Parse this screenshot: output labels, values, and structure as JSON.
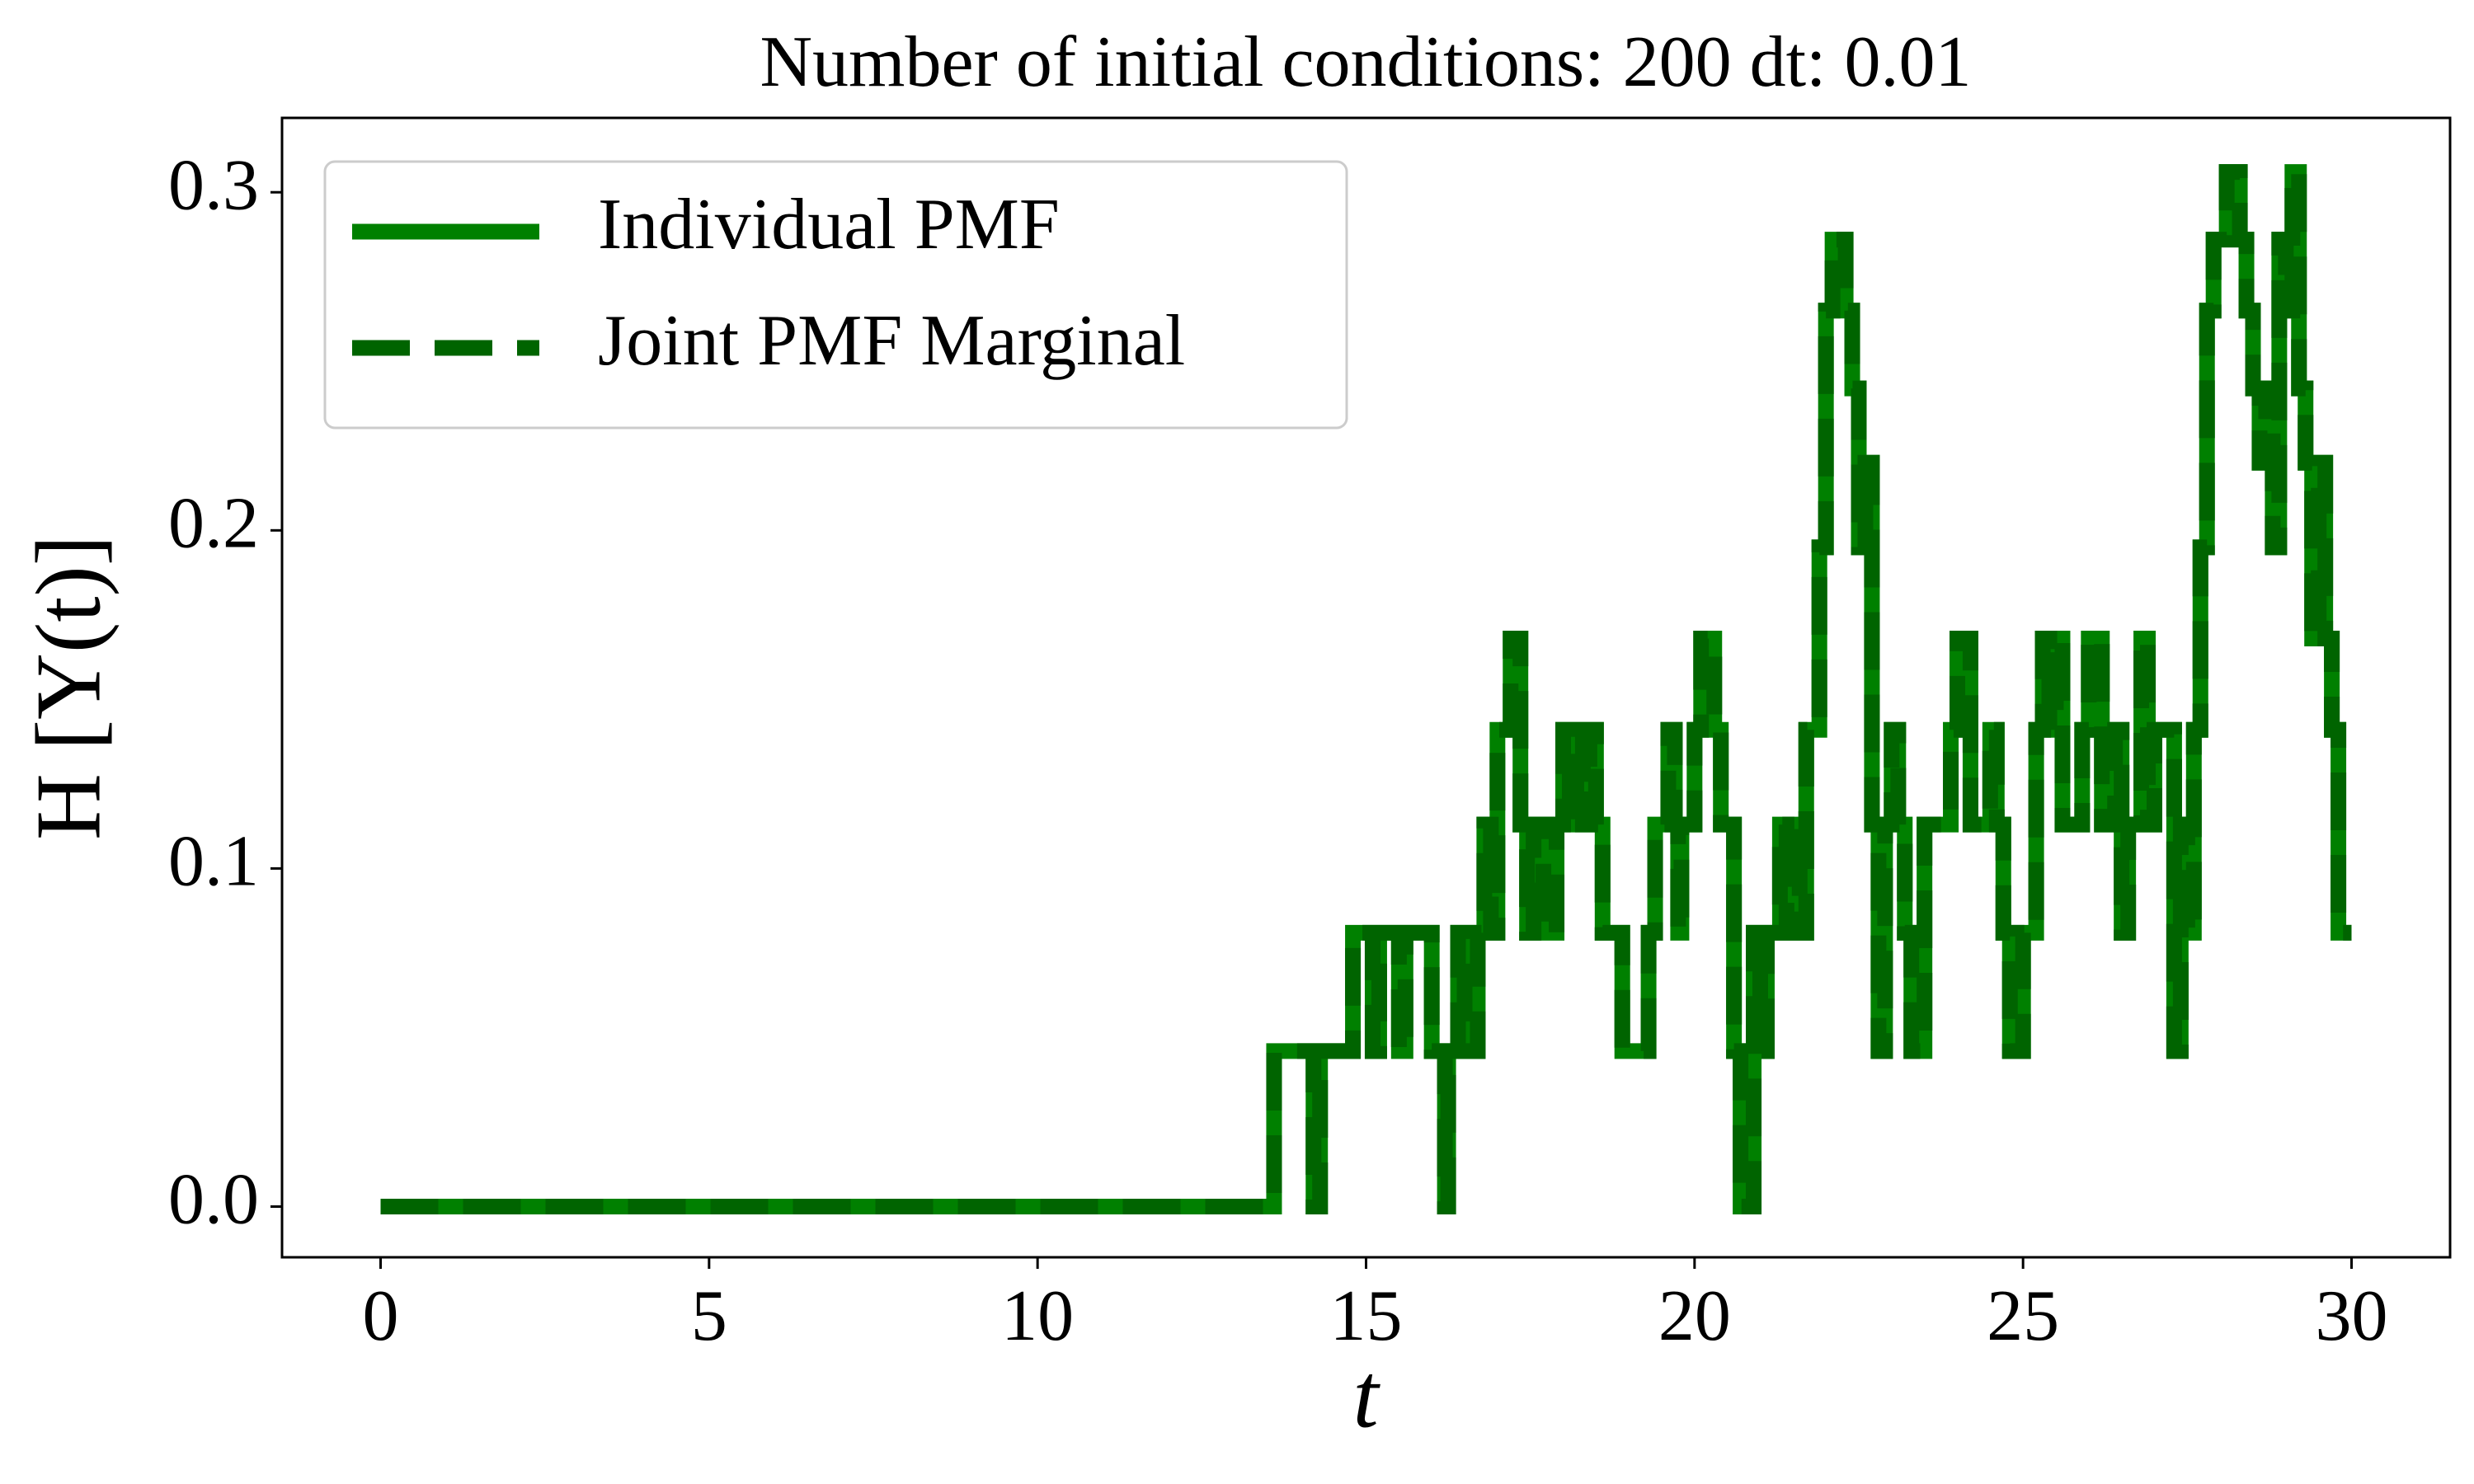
{
  "chart_data": {
    "type": "line",
    "drawstyle": "steps-post",
    "title": "Number of initial conditions: 200 dt: 0.01",
    "x_label": "t",
    "y_label": "H [Y(t)]",
    "xlim": [
      -1.5,
      31.5
    ],
    "ylim": [
      -0.015,
      0.322
    ],
    "xticks": [
      0,
      5,
      10,
      15,
      20,
      25,
      30
    ],
    "yticks": [
      {
        "value": 0,
        "label": "0.0"
      },
      0.1,
      0.2,
      0.3
    ],
    "grid": false,
    "legend": "upper left",
    "x": [
      0,
      13.6,
      14.2,
      14.3,
      14.8,
      15.1,
      15.2,
      15.5,
      15.6,
      16.0,
      16.2,
      16.25,
      16.4,
      16.5,
      16.7,
      16.8,
      16.9,
      17.0,
      17.2,
      17.35,
      17.45,
      17.55,
      17.7,
      17.9,
      18.0,
      18.1,
      18.2,
      18.3,
      18.4,
      18.5,
      18.6,
      18.9,
      19.3,
      19.4,
      19.6,
      19.7,
      19.75,
      19.8,
      20.0,
      20.1,
      20.3,
      20.4,
      20.6,
      20.7,
      20.9,
      21.0,
      21.1,
      21.3,
      21.4,
      21.5,
      21.6,
      21.7,
      21.9,
      22.0,
      22.1,
      22.3,
      22.4,
      22.5,
      22.6,
      22.7,
      22.8,
      22.9,
      23.0,
      23.1,
      23.2,
      23.3,
      23.5,
      23.9,
      24.0,
      24.2,
      24.5,
      24.6,
      24.7,
      24.8,
      25.0,
      25.2,
      25.3,
      25.4,
      25.5,
      25.6,
      25.9,
      26.0,
      26.2,
      26.4,
      26.5,
      26.6,
      26.8,
      26.9,
      27.0,
      27.3,
      27.4,
      27.5,
      27.6,
      27.7,
      27.8,
      27.9,
      28.1,
      28.3,
      28.4,
      28.5,
      28.6,
      28.7,
      28.8,
      28.9,
      29.0,
      29.1,
      29.2,
      29.3,
      29.4,
      29.5,
      29.6,
      29.7,
      29.8,
      30.0
    ],
    "series": [
      {
        "name": "Individual PMF",
        "color": "#008000",
        "linestyle": "solid",
        "values": [
          0,
          0.046,
          0,
          0.046,
          0.081,
          0.046,
          0.081,
          0.046,
          0.081,
          0.046,
          0,
          0.046,
          0.081,
          0.046,
          0.081,
          0.113,
          0.081,
          0.141,
          0.168,
          0.113,
          0.081,
          0.113,
          0.081,
          0.113,
          0.141,
          0.113,
          0.141,
          0.113,
          0.141,
          0.113,
          0.081,
          0.046,
          0.081,
          0.113,
          0.141,
          0.113,
          0.081,
          0.113,
          0.141,
          0.168,
          0.141,
          0.113,
          0.046,
          0,
          0.081,
          0.046,
          0.081,
          0.113,
          0.081,
          0.113,
          0.081,
          0.141,
          0.195,
          0.265,
          0.286,
          0.265,
          0.242,
          0.195,
          0.22,
          0.113,
          0.046,
          0.113,
          0.141,
          0.113,
          0.081,
          0.046,
          0.113,
          0.141,
          0.168,
          0.113,
          0.141,
          0.113,
          0.081,
          0.046,
          0.081,
          0.141,
          0.168,
          0.141,
          0.168,
          0.113,
          0.141,
          0.168,
          0.113,
          0.141,
          0.081,
          0.113,
          0.168,
          0.113,
          0.141,
          0.046,
          0.113,
          0.081,
          0.141,
          0.195,
          0.265,
          0.286,
          0.306,
          0.286,
          0.265,
          0.242,
          0.22,
          0.242,
          0.195,
          0.286,
          0.265,
          0.306,
          0.242,
          0.22,
          0.168,
          0.22,
          0.168,
          0.141,
          0.081,
          0.081
        ]
      },
      {
        "name": "Joint PMF Marginal",
        "color": "#006400",
        "linestyle": "dashed",
        "values": [
          0,
          0.046,
          0,
          0.046,
          0.081,
          0.046,
          0.081,
          0.046,
          0.081,
          0.046,
          0,
          0.046,
          0.081,
          0.046,
          0.081,
          0.113,
          0.081,
          0.141,
          0.168,
          0.113,
          0.081,
          0.113,
          0.081,
          0.113,
          0.141,
          0.113,
          0.141,
          0.113,
          0.141,
          0.113,
          0.081,
          0.046,
          0.081,
          0.113,
          0.141,
          0.113,
          0.081,
          0.113,
          0.141,
          0.168,
          0.141,
          0.113,
          0.046,
          0,
          0.081,
          0.046,
          0.081,
          0.113,
          0.081,
          0.113,
          0.081,
          0.141,
          0.195,
          0.265,
          0.286,
          0.265,
          0.242,
          0.195,
          0.22,
          0.113,
          0.046,
          0.113,
          0.141,
          0.113,
          0.081,
          0.046,
          0.113,
          0.141,
          0.168,
          0.113,
          0.141,
          0.113,
          0.081,
          0.046,
          0.081,
          0.141,
          0.168,
          0.141,
          0.168,
          0.113,
          0.141,
          0.168,
          0.113,
          0.141,
          0.081,
          0.113,
          0.168,
          0.113,
          0.141,
          0.046,
          0.113,
          0.081,
          0.141,
          0.195,
          0.265,
          0.286,
          0.306,
          0.286,
          0.265,
          0.242,
          0.22,
          0.242,
          0.195,
          0.286,
          0.265,
          0.306,
          0.242,
          0.22,
          0.168,
          0.22,
          0.168,
          0.141,
          0.081,
          0.081
        ]
      }
    ]
  }
}
